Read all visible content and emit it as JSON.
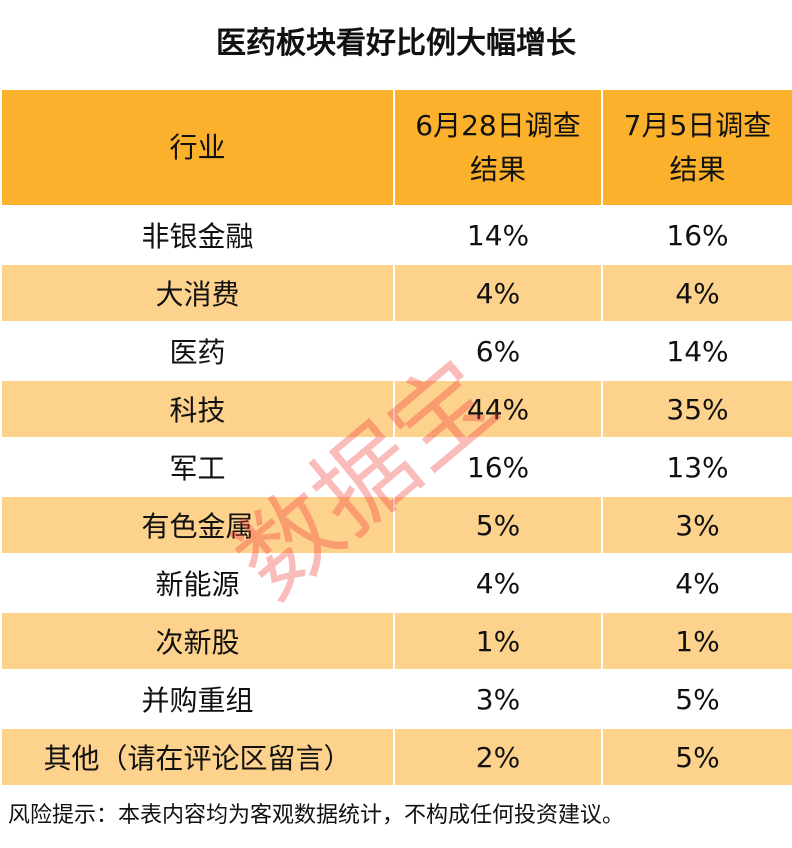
{
  "title": "医药板块看好比例大幅增长",
  "table": {
    "header": [
      "行业",
      "6月28日调查结果",
      "7月5日调查结果"
    ],
    "rows": [
      [
        "非银金融",
        "14%",
        "16%"
      ],
      [
        "大消费",
        "4%",
        "4%"
      ],
      [
        "医药",
        "6%",
        "14%"
      ],
      [
        "科技",
        "44%",
        "35%"
      ],
      [
        "军工",
        "16%",
        "13%"
      ],
      [
        "有色金属",
        "5%",
        "3%"
      ],
      [
        "新能源",
        "4%",
        "4%"
      ],
      [
        "次新股",
        "1%",
        "1%"
      ],
      [
        "并购重组",
        "3%",
        "5%"
      ],
      [
        "其他（请在评论区留言）",
        "2%",
        "5%"
      ]
    ]
  },
  "watermark": "数据宝",
  "footnote": "风险提示：本表内容均为客观数据统计，不构成任何投资建议。"
}
